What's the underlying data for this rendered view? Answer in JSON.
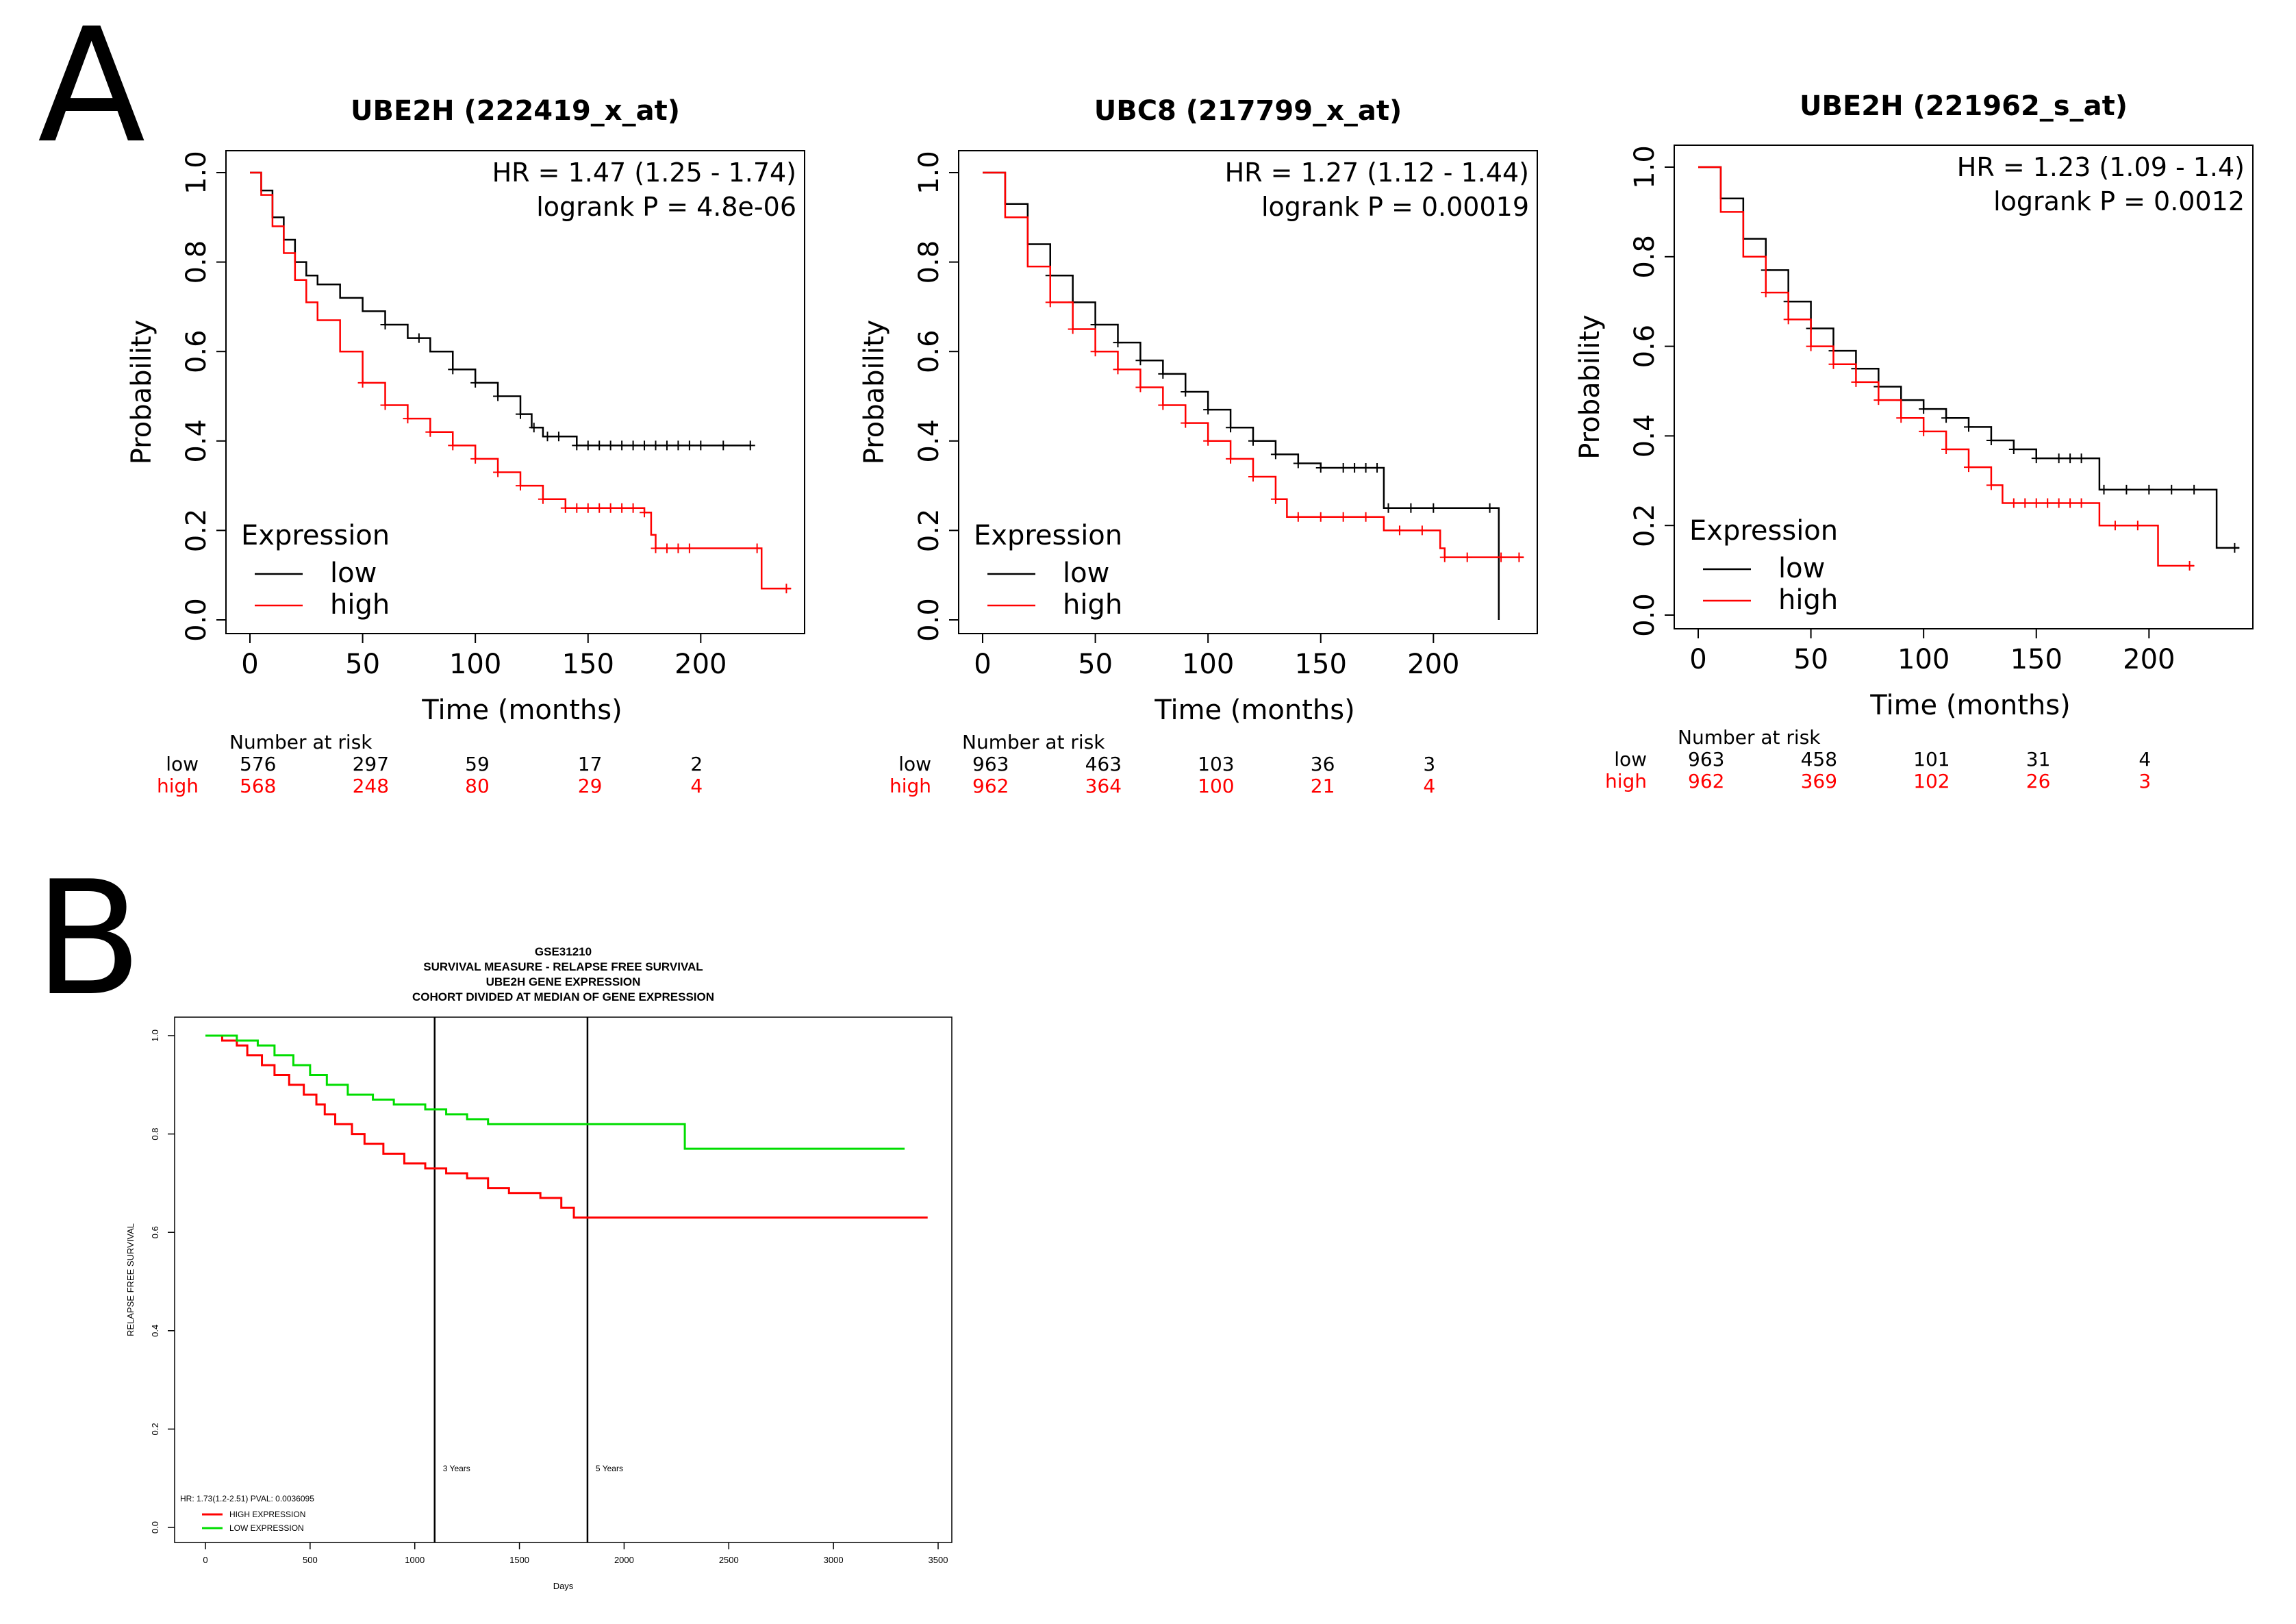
{
  "panels": {
    "A": {
      "letter": "A"
    },
    "B": {
      "letter": "B"
    }
  },
  "colors": {
    "low": "#000000",
    "high": "#ff0000",
    "b_high": "#ff0000",
    "b_low": "#00dd00"
  },
  "chart_data": [
    {
      "id": "A1",
      "type": "line",
      "subtype": "kaplan-meier",
      "title": "UBE2H (222419_x_at)",
      "xlabel": "Time (months)",
      "ylabel": "Probability",
      "xlim": [
        0,
        240
      ],
      "ylim": [
        0,
        1
      ],
      "xticks": [
        "0",
        "50",
        "100",
        "150",
        "200"
      ],
      "yticks": [
        "0.0",
        "0.2",
        "0.4",
        "0.6",
        "0.8",
        "1.0"
      ],
      "hr_text": "HR = 1.47 (1.25 - 1.74)",
      "p_text": "logrank P = 4.8e-06",
      "legend_title": "Expression",
      "series": [
        {
          "name": "low",
          "color": "#000000",
          "points": [
            [
              0,
              1
            ],
            [
              5,
              0.96
            ],
            [
              10,
              0.9
            ],
            [
              15,
              0.85
            ],
            [
              20,
              0.8
            ],
            [
              25,
              0.77
            ],
            [
              30,
              0.75
            ],
            [
              40,
              0.72
            ],
            [
              50,
              0.69
            ],
            [
              60,
              0.66
            ],
            [
              70,
              0.63
            ],
            [
              80,
              0.6
            ],
            [
              90,
              0.56
            ],
            [
              100,
              0.53
            ],
            [
              110,
              0.5
            ],
            [
              120,
              0.46
            ],
            [
              125,
              0.43
            ],
            [
              130,
              0.41
            ],
            [
              140,
              0.41
            ],
            [
              145,
              0.39
            ],
            [
              222,
              0.39
            ]
          ],
          "censor": [
            60,
            75,
            90,
            100,
            110,
            120,
            126,
            132,
            137,
            145,
            150,
            155,
            160,
            165,
            170,
            175,
            180,
            185,
            190,
            195,
            200,
            210,
            222
          ]
        },
        {
          "name": "high",
          "color": "#ff0000",
          "points": [
            [
              0,
              1
            ],
            [
              5,
              0.95
            ],
            [
              10,
              0.88
            ],
            [
              15,
              0.82
            ],
            [
              20,
              0.76
            ],
            [
              25,
              0.71
            ],
            [
              30,
              0.67
            ],
            [
              40,
              0.6
            ],
            [
              50,
              0.53
            ],
            [
              60,
              0.48
            ],
            [
              70,
              0.45
            ],
            [
              80,
              0.42
            ],
            [
              90,
              0.39
            ],
            [
              100,
              0.36
            ],
            [
              110,
              0.33
            ],
            [
              120,
              0.3
            ],
            [
              130,
              0.27
            ],
            [
              140,
              0.25
            ],
            [
              175,
              0.24
            ],
            [
              178,
              0.19
            ],
            [
              180,
              0.16
            ],
            [
              226,
              0.16
            ],
            [
              227,
              0.07
            ],
            [
              240,
              0.07
            ]
          ],
          "censor": [
            50,
            60,
            70,
            80,
            90,
            100,
            110,
            120,
            130,
            140,
            145,
            150,
            155,
            160,
            165,
            170,
            175,
            180,
            185,
            190,
            195,
            225,
            238
          ]
        }
      ],
      "risk_table": {
        "header": "Number at risk",
        "rows": [
          {
            "label": "low",
            "color": "#000000",
            "values": [
              "576",
              "297",
              "59",
              "17",
              "2"
            ]
          },
          {
            "label": "high",
            "color": "#ff0000",
            "values": [
              "568",
              "248",
              "80",
              "29",
              "4"
            ]
          }
        ]
      }
    },
    {
      "id": "A2",
      "type": "line",
      "subtype": "kaplan-meier",
      "title": "UBC8 (217799_x_at)",
      "xlabel": "Time (months)",
      "ylabel": "Probability",
      "xlim": [
        0,
        240
      ],
      "ylim": [
        0,
        1
      ],
      "xticks": [
        "0",
        "50",
        "100",
        "150",
        "200"
      ],
      "yticks": [
        "0.0",
        "0.2",
        "0.4",
        "0.6",
        "0.8",
        "1.0"
      ],
      "hr_text": "HR = 1.27 (1.12 - 1.44)",
      "p_text": "logrank P = 0.00019",
      "legend_title": "Expression",
      "series": [
        {
          "name": "low",
          "color": "#000000",
          "points": [
            [
              0,
              1
            ],
            [
              10,
              0.93
            ],
            [
              20,
              0.84
            ],
            [
              30,
              0.77
            ],
            [
              40,
              0.71
            ],
            [
              50,
              0.66
            ],
            [
              60,
              0.62
            ],
            [
              70,
              0.58
            ],
            [
              80,
              0.55
            ],
            [
              90,
              0.51
            ],
            [
              100,
              0.47
            ],
            [
              110,
              0.43
            ],
            [
              120,
              0.4
            ],
            [
              130,
              0.37
            ],
            [
              140,
              0.35
            ],
            [
              150,
              0.34
            ],
            [
              175,
              0.34
            ],
            [
              178,
              0.25
            ],
            [
              228,
              0.25
            ],
            [
              229,
              0.0
            ]
          ],
          "censor": [
            30,
            40,
            50,
            60,
            70,
            80,
            90,
            100,
            110,
            120,
            130,
            140,
            150,
            160,
            165,
            170,
            175,
            180,
            190,
            200,
            225
          ]
        },
        {
          "name": "high",
          "color": "#ff0000",
          "points": [
            [
              0,
              1
            ],
            [
              10,
              0.9
            ],
            [
              20,
              0.79
            ],
            [
              30,
              0.71
            ],
            [
              40,
              0.65
            ],
            [
              50,
              0.6
            ],
            [
              60,
              0.56
            ],
            [
              70,
              0.52
            ],
            [
              80,
              0.48
            ],
            [
              90,
              0.44
            ],
            [
              100,
              0.4
            ],
            [
              110,
              0.36
            ],
            [
              120,
              0.32
            ],
            [
              130,
              0.27
            ],
            [
              135,
              0.23
            ],
            [
              175,
              0.23
            ],
            [
              178,
              0.2
            ],
            [
              200,
              0.2
            ],
            [
              203,
              0.16
            ],
            [
              205,
              0.14
            ],
            [
              240,
              0.14
            ]
          ],
          "censor": [
            30,
            40,
            50,
            60,
            70,
            80,
            90,
            100,
            110,
            120,
            130,
            140,
            150,
            160,
            170,
            185,
            195,
            205,
            215,
            230,
            238
          ]
        }
      ],
      "risk_table": {
        "header": "Number at risk",
        "rows": [
          {
            "label": "low",
            "color": "#000000",
            "values": [
              "963",
              "463",
              "103",
              "36",
              "3"
            ]
          },
          {
            "label": "high",
            "color": "#ff0000",
            "values": [
              "962",
              "364",
              "100",
              "21",
              "4"
            ]
          }
        ]
      }
    },
    {
      "id": "A3",
      "type": "line",
      "subtype": "kaplan-meier",
      "title": "UBE2H (221962_s_at)",
      "xlabel": "Time (months)",
      "ylabel": "Probability",
      "xlim": [
        0,
        240
      ],
      "ylim": [
        0,
        1
      ],
      "xticks": [
        "0",
        "50",
        "100",
        "150",
        "200"
      ],
      "yticks": [
        "0.0",
        "0.2",
        "0.4",
        "0.6",
        "0.8",
        "1.0"
      ],
      "hr_text": "HR = 1.23 (1.09 - 1.4)",
      "p_text": "logrank P = 0.0012",
      "legend_title": "Expression",
      "series": [
        {
          "name": "low",
          "color": "#000000",
          "points": [
            [
              0,
              1
            ],
            [
              10,
              0.93
            ],
            [
              20,
              0.84
            ],
            [
              30,
              0.77
            ],
            [
              40,
              0.7
            ],
            [
              50,
              0.64
            ],
            [
              60,
              0.59
            ],
            [
              70,
              0.55
            ],
            [
              80,
              0.51
            ],
            [
              90,
              0.48
            ],
            [
              100,
              0.46
            ],
            [
              110,
              0.44
            ],
            [
              120,
              0.42
            ],
            [
              130,
              0.39
            ],
            [
              140,
              0.37
            ],
            [
              150,
              0.35
            ],
            [
              175,
              0.35
            ],
            [
              178,
              0.28
            ],
            [
              227,
              0.28
            ],
            [
              230,
              0.15
            ],
            [
              240,
              0.15
            ]
          ],
          "censor": [
            30,
            40,
            50,
            60,
            70,
            80,
            90,
            100,
            110,
            120,
            130,
            140,
            150,
            160,
            165,
            170,
            180,
            190,
            200,
            210,
            220,
            238
          ]
        },
        {
          "name": "high",
          "color": "#ff0000",
          "points": [
            [
              0,
              1
            ],
            [
              10,
              0.9
            ],
            [
              20,
              0.8
            ],
            [
              30,
              0.72
            ],
            [
              40,
              0.66
            ],
            [
              50,
              0.6
            ],
            [
              60,
              0.56
            ],
            [
              70,
              0.52
            ],
            [
              80,
              0.48
            ],
            [
              90,
              0.44
            ],
            [
              100,
              0.41
            ],
            [
              110,
              0.37
            ],
            [
              120,
              0.33
            ],
            [
              130,
              0.29
            ],
            [
              135,
              0.25
            ],
            [
              175,
              0.25
            ],
            [
              178,
              0.2
            ],
            [
              203,
              0.2
            ],
            [
              204,
              0.11
            ],
            [
              220,
              0.11
            ]
          ],
          "censor": [
            30,
            40,
            50,
            60,
            70,
            80,
            90,
            100,
            110,
            120,
            130,
            140,
            145,
            150,
            155,
            160,
            165,
            170,
            185,
            195,
            218
          ]
        }
      ],
      "risk_table": {
        "header": "Number at risk",
        "rows": [
          {
            "label": "low",
            "color": "#000000",
            "values": [
              "963",
              "458",
              "101",
              "31",
              "4"
            ]
          },
          {
            "label": "high",
            "color": "#ff0000",
            "values": [
              "962",
              "369",
              "102",
              "26",
              "3"
            ]
          }
        ]
      }
    },
    {
      "id": "B",
      "type": "line",
      "subtype": "kaplan-meier",
      "title_lines": [
        "GSE31210",
        "SURVIVAL MEASURE -  RELAPSE FREE SURVIVAL",
        "UBE2H  GENE EXPRESSION",
        "COHORT DIVIDED AT MEDIAN OF GENE EXPRESSION"
      ],
      "xlabel": "Days",
      "ylabel": "RELAPSE FREE SURVIVAL",
      "xlim": [
        0,
        3500
      ],
      "ylim": [
        0,
        1
      ],
      "xticks": [
        "0",
        "500",
        "1000",
        "1500",
        "2000",
        "2500",
        "3000",
        "3500"
      ],
      "yticks": [
        "0.0",
        "0.2",
        "0.4",
        "0.6",
        "0.8",
        "1.0"
      ],
      "vlines": [
        {
          "x": 1095,
          "label": "3 Years"
        },
        {
          "x": 1825,
          "label": "5 Years"
        }
      ],
      "stat_text": "HR: 1.73(1.2-2.51)  PVAL: 0.0036095",
      "series": [
        {
          "name": "HIGH EXPRESSION",
          "color": "#ff0000",
          "points": [
            [
              0,
              1
            ],
            [
              80,
              0.99
            ],
            [
              150,
              0.98
            ],
            [
              200,
              0.96
            ],
            [
              270,
              0.94
            ],
            [
              330,
              0.92
            ],
            [
              400,
              0.9
            ],
            [
              470,
              0.88
            ],
            [
              530,
              0.86
            ],
            [
              570,
              0.84
            ],
            [
              620,
              0.82
            ],
            [
              700,
              0.8
            ],
            [
              760,
              0.78
            ],
            [
              850,
              0.76
            ],
            [
              950,
              0.74
            ],
            [
              1050,
              0.73
            ],
            [
              1150,
              0.72
            ],
            [
              1250,
              0.71
            ],
            [
              1350,
              0.69
            ],
            [
              1450,
              0.68
            ],
            [
              1600,
              0.67
            ],
            [
              1700,
              0.65
            ],
            [
              1760,
              0.63
            ],
            [
              3450,
              0.63
            ]
          ]
        },
        {
          "name": "LOW EXPRESSION",
          "color": "#00dd00",
          "points": [
            [
              0,
              1
            ],
            [
              150,
              0.99
            ],
            [
              250,
              0.98
            ],
            [
              330,
              0.96
            ],
            [
              420,
              0.94
            ],
            [
              500,
              0.92
            ],
            [
              580,
              0.9
            ],
            [
              680,
              0.88
            ],
            [
              800,
              0.87
            ],
            [
              900,
              0.86
            ],
            [
              1050,
              0.85
            ],
            [
              1150,
              0.84
            ],
            [
              1250,
              0.83
            ],
            [
              1350,
              0.82
            ],
            [
              1500,
              0.82
            ],
            [
              2280,
              0.82
            ],
            [
              2290,
              0.77
            ],
            [
              3340,
              0.77
            ]
          ]
        }
      ]
    }
  ]
}
